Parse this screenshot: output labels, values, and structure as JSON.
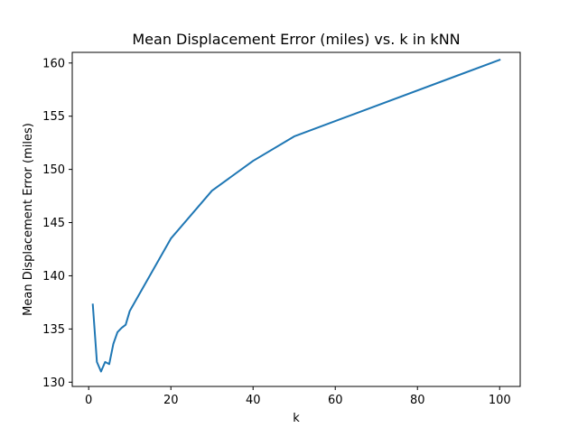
{
  "chart_data": {
    "type": "line",
    "title": "Mean Displacement Error (miles) vs. k in kNN",
    "xlabel": "k",
    "ylabel": "Mean Displacement Error (miles)",
    "xlim": [
      -4,
      105
    ],
    "ylim": [
      129.6,
      161.0
    ],
    "xticks": [
      0,
      20,
      40,
      60,
      80,
      100
    ],
    "yticks": [
      130,
      135,
      140,
      145,
      150,
      155,
      160
    ],
    "grid": false,
    "series": [
      {
        "color": "#1f77b4",
        "x": [
          1,
          2,
          3,
          4,
          5,
          6,
          7,
          8,
          9,
          10,
          20,
          30,
          40,
          50,
          100
        ],
        "y": [
          137.3,
          131.9,
          131.0,
          131.9,
          131.7,
          133.6,
          134.7,
          135.1,
          135.4,
          136.7,
          143.5,
          148.0,
          150.8,
          153.1,
          160.3
        ]
      }
    ]
  }
}
